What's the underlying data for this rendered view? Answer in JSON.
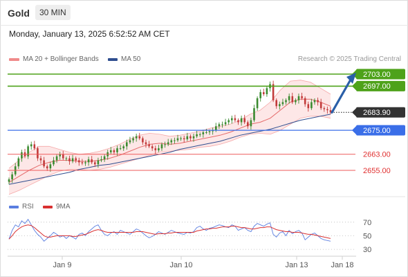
{
  "header": {
    "instrument": "Gold",
    "timeframe": "30 MIN",
    "datetime": "Monday, January 13, 2025 6:52:52 AM CET",
    "credit": "Research © 2025 Trading Central"
  },
  "colors": {
    "candle_up": "#3a8a2f",
    "candle_down": "#c23b3b",
    "resistance": "#4ea21a",
    "pivot": "#3a6ee8",
    "support": "#ee5a5a",
    "ma50": "#2f4e8f",
    "bollinger": "#f5a8a8",
    "rsi": "#5a7ee0",
    "rsi_ma": "#d93030",
    "arrow": "#2a5fa8",
    "current_price": "#333333"
  },
  "chart_data": {
    "type": "candlestick",
    "main_panel": {
      "legend": [
        {
          "label": "MA 20 + Bollinger Bands",
          "color": "#f08a8a"
        },
        {
          "label": "MA 50",
          "color": "#2f4e8f"
        }
      ],
      "x_ticks": [
        "Jan 9",
        "Jan 10",
        "Jan 13",
        "Jan 18"
      ],
      "levels": [
        {
          "label": "2703.00",
          "value": 2703.0,
          "kind": "resistance"
        },
        {
          "label": "2697.00",
          "value": 2697.0,
          "kind": "resistance"
        },
        {
          "label": "2683.90",
          "value": 2683.9,
          "kind": "current"
        },
        {
          "label": "2675.00",
          "value": 2675.0,
          "kind": "pivot"
        },
        {
          "label": "2663.00",
          "value": 2663.0,
          "kind": "support"
        },
        {
          "label": "2655.00",
          "value": 2655.0,
          "kind": "support"
        }
      ],
      "close": [
        2650.5,
        2653.0,
        2657.0,
        2661.0,
        2664.0,
        2662.0,
        2667.0,
        2668.0,
        2666.0,
        2661.0,
        2660.0,
        2657.0,
        2656.0,
        2658.0,
        2660.0,
        2662.0,
        2663.0,
        2661.0,
        2661.0,
        2659.5,
        2661.0,
        2660.0,
        2659.0,
        2658.5,
        2659.0,
        2660.5,
        2659.0,
        2658.0,
        2660.0,
        2660.5,
        2662.0,
        2664.0,
        2665.0,
        2664.0,
        2666.0,
        2666.0,
        2667.0,
        2669.0,
        2670.0,
        2671.0,
        2672.0,
        2671.0,
        2669.0,
        2668.0,
        2667.0,
        2666.0,
        2665.0,
        2666.0,
        2668.0,
        2668.0,
        2669.0,
        2670.0,
        2670.0,
        2671.0,
        2671.0,
        2670.5,
        2672.0,
        2671.0,
        2672.0,
        2673.0,
        2673.0,
        2674.0,
        2674.0,
        2674.5,
        2675.0,
        2677.0,
        2678.0,
        2678.0,
        2679.0,
        2680.0,
        2681.0,
        2680.0,
        2679.0,
        2681.0,
        2679.0,
        2677.0,
        2680.0,
        2686.0,
        2691.0,
        2694.0,
        2693.0,
        2696.0,
        2698.0,
        2690.0,
        2687.0,
        2688.0,
        2689.0,
        2690.0,
        2692.0,
        2689.0,
        2690.0,
        2692.0,
        2691.0,
        2688.0,
        2686.0,
        2689.0,
        2690.0,
        2689.0,
        2686.0,
        2685.5,
        2685.0,
        2683.9
      ],
      "ma50": [
        2648.0,
        2649.0,
        2650.0,
        2651.0,
        2652.0,
        2653.0,
        2654.0,
        2655.5,
        2656.5,
        2657.5,
        2658.0,
        2659.0,
        2660.0,
        2661.0,
        2662.0,
        2663.0,
        2664.0,
        2665.5,
        2666.5,
        2667.5,
        2668.5,
        2669.5,
        2671.0,
        2672.5,
        2673.5,
        2674.5,
        2675.5,
        2677.0,
        2678.5,
        2680.0,
        2681.0,
        2682.0,
        2683.0
      ],
      "ma20": [
        2649.0,
        2652.0,
        2655.0,
        2657.5,
        2659.0,
        2660.0,
        2660.0,
        2659.5,
        2659.5,
        2660.0,
        2661.0,
        2662.5,
        2664.5,
        2666.5,
        2668.0,
        2668.5,
        2668.0,
        2668.5,
        2669.5,
        2670.5,
        2671.5,
        2672.5,
        2674.0,
        2676.0,
        2678.0,
        2679.0,
        2681.0,
        2685.0,
        2689.0,
        2690.5,
        2690.5,
        2689.0,
        2687.0
      ],
      "boll_upper": [
        2656.0,
        2660.0,
        2664.0,
        2667.0,
        2667.0,
        2665.5,
        2664.0,
        2663.0,
        2663.5,
        2664.5,
        2666.0,
        2668.0,
        2670.5,
        2672.5,
        2673.5,
        2673.0,
        2672.0,
        2672.5,
        2673.5,
        2674.5,
        2676.0,
        2677.0,
        2678.0,
        2680.0,
        2683.0,
        2685.0,
        2689.0,
        2695.0,
        2699.5,
        2700.0,
        2699.0,
        2696.0,
        2693.0
      ],
      "boll_lower": [
        2643.0,
        2645.0,
        2647.5,
        2650.0,
        2652.5,
        2654.5,
        2655.5,
        2655.5,
        2655.0,
        2655.5,
        2656.5,
        2658.0,
        2659.5,
        2661.0,
        2662.5,
        2664.0,
        2664.5,
        2665.0,
        2665.5,
        2666.5,
        2667.0,
        2668.0,
        2669.5,
        2671.5,
        2673.0,
        2673.5,
        2673.0,
        2675.0,
        2678.0,
        2681.0,
        2682.0,
        2682.0,
        2681.0
      ],
      "projection": {
        "from": 2683.9,
        "to": 2703.0
      }
    },
    "rsi_panel": {
      "legend": [
        {
          "label": "RSI",
          "color": "#5a7ee0"
        },
        {
          "label": "9MA",
          "color": "#d93030"
        }
      ],
      "y_ticks": [
        "70",
        "50",
        "30"
      ],
      "ylim": [
        25,
        85
      ],
      "rsi": [
        45,
        58,
        66,
        63,
        72,
        68,
        74,
        66,
        58,
        52,
        48,
        42,
        46,
        50,
        55,
        52,
        48,
        50,
        46,
        50,
        48,
        45,
        52,
        54,
        50,
        56,
        60,
        64,
        66,
        58,
        52,
        50,
        54,
        56,
        52,
        58,
        56,
        54,
        52,
        56,
        60,
        58,
        54,
        50,
        47,
        49,
        52,
        56,
        54,
        52,
        55,
        58,
        56,
        54,
        53,
        52,
        55,
        54,
        56,
        62,
        64,
        60,
        58,
        61,
        62,
        64,
        66,
        65,
        63,
        62,
        66,
        64,
        58,
        60,
        62,
        58,
        56,
        64,
        68,
        66,
        64,
        67,
        69,
        52,
        48,
        54,
        56,
        50,
        58,
        53,
        56,
        58,
        54,
        44,
        48,
        52,
        54,
        50,
        46,
        44,
        43,
        42
      ],
      "rsi_ma": [
        45,
        50,
        56,
        60,
        63,
        65,
        66,
        65,
        62,
        58,
        54,
        50,
        48,
        48,
        49,
        50,
        50,
        50,
        50,
        50,
        49,
        49,
        50,
        51,
        52,
        54,
        56,
        58,
        59,
        58,
        56,
        55,
        55,
        55,
        55,
        55,
        55,
        55,
        55,
        55,
        56,
        56,
        56,
        55,
        54,
        53,
        52,
        53,
        53,
        53,
        54,
        54,
        55,
        55,
        55,
        55,
        55,
        55,
        55,
        57,
        58,
        59,
        60,
        60,
        61,
        61,
        62,
        63,
        63,
        63,
        64,
        64,
        63,
        62,
        62,
        61,
        60,
        60,
        61,
        62,
        62,
        63,
        63,
        61,
        59,
        58,
        57,
        56,
        56,
        55,
        55,
        55,
        54,
        53,
        52,
        52,
        51,
        50,
        49,
        48,
        47,
        46
      ]
    }
  }
}
